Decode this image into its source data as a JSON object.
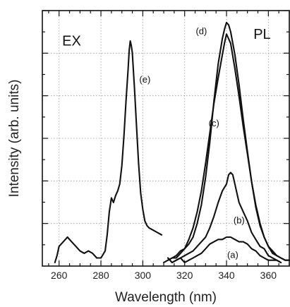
{
  "chart_data": {
    "type": "line",
    "xlabel": "Wavelength (nm)",
    "ylabel": "Intensity (arb. units)",
    "xlim": [
      252,
      370
    ],
    "ylim": [
      0,
      1.0
    ],
    "x_ticks": [
      260,
      280,
      300,
      320,
      340,
      360
    ],
    "x_minor_step": 5,
    "y_tick_count": 6,
    "y_tick_labels": false,
    "grid": true,
    "region_labels": [
      {
        "text": "EX",
        "x": 266,
        "y": 0.94
      },
      {
        "text": "PL",
        "x": 357,
        "y": 0.97
      }
    ],
    "series": [
      {
        "label": "(e)",
        "label_at": {
          "x": 301,
          "y": 0.78
        },
        "points": [
          [
            258,
            0.0
          ],
          [
            259,
            0.03
          ],
          [
            260,
            0.07
          ],
          [
            262,
            0.09
          ],
          [
            264,
            0.11
          ],
          [
            266,
            0.09
          ],
          [
            268,
            0.07
          ],
          [
            270,
            0.05
          ],
          [
            272,
            0.04
          ],
          [
            274,
            0.05
          ],
          [
            276,
            0.04
          ],
          [
            278,
            0.02
          ],
          [
            280,
            0.02
          ],
          [
            282,
            0.05
          ],
          [
            283,
            0.12
          ],
          [
            284,
            0.22
          ],
          [
            285,
            0.28
          ],
          [
            286,
            0.26
          ],
          [
            287,
            0.29
          ],
          [
            288,
            0.31
          ],
          [
            289,
            0.34
          ],
          [
            290,
            0.42
          ],
          [
            291,
            0.55
          ],
          [
            292,
            0.7
          ],
          [
            293,
            0.84
          ],
          [
            293.5,
            0.92
          ],
          [
            294,
            0.96
          ],
          [
            294.5,
            0.94
          ],
          [
            295,
            0.91
          ],
          [
            296,
            0.76
          ],
          [
            297,
            0.59
          ],
          [
            298,
            0.43
          ],
          [
            299,
            0.3
          ],
          [
            300,
            0.23
          ],
          [
            301,
            0.18
          ],
          [
            302,
            0.16
          ],
          [
            303,
            0.15
          ],
          [
            305,
            0.14
          ],
          [
            307,
            0.13
          ],
          [
            309,
            0.12
          ]
        ]
      },
      {
        "label": "(a)",
        "label_at": {
          "x": 343,
          "y": 0.02
        },
        "points": [
          [
            312,
            0.02
          ],
          [
            314,
            0.0
          ],
          [
            316,
            0.01
          ],
          [
            318,
            0.02
          ],
          [
            320,
            0.0
          ],
          [
            322,
            0.01
          ],
          [
            324,
            0.02
          ],
          [
            326,
            0.03
          ],
          [
            328,
            0.04
          ],
          [
            330,
            0.06
          ],
          [
            332,
            0.08
          ],
          [
            334,
            0.09
          ],
          [
            336,
            0.1
          ],
          [
            338,
            0.1
          ],
          [
            340,
            0.11
          ],
          [
            342,
            0.11
          ],
          [
            344,
            0.1
          ],
          [
            346,
            0.09
          ],
          [
            348,
            0.09
          ],
          [
            350,
            0.08
          ],
          [
            352,
            0.06
          ],
          [
            354,
            0.05
          ],
          [
            356,
            0.03
          ],
          [
            358,
            0.02
          ],
          [
            360,
            0.01
          ],
          [
            362,
            0.01
          ],
          [
            364,
            0.01
          ],
          [
            366,
            0.0
          ]
        ]
      },
      {
        "label": "(b)",
        "label_at": {
          "x": 346,
          "y": 0.17
        },
        "points": [
          [
            314,
            0.0
          ],
          [
            316,
            0.01
          ],
          [
            318,
            0.02
          ],
          [
            320,
            0.03
          ],
          [
            322,
            0.04
          ],
          [
            324,
            0.05
          ],
          [
            326,
            0.07
          ],
          [
            328,
            0.09
          ],
          [
            330,
            0.11
          ],
          [
            332,
            0.15
          ],
          [
            334,
            0.2
          ],
          [
            336,
            0.26
          ],
          [
            338,
            0.31
          ],
          [
            340,
            0.34
          ],
          [
            341,
            0.38
          ],
          [
            342,
            0.39
          ],
          [
            343,
            0.38
          ],
          [
            344,
            0.34
          ],
          [
            345,
            0.3
          ],
          [
            346,
            0.26
          ],
          [
            348,
            0.22
          ],
          [
            350,
            0.18
          ],
          [
            352,
            0.13
          ],
          [
            354,
            0.1
          ],
          [
            356,
            0.07
          ],
          [
            358,
            0.06
          ],
          [
            360,
            0.03
          ],
          [
            362,
            0.02
          ],
          [
            364,
            0.01
          ],
          [
            366,
            0.0
          ]
        ]
      },
      {
        "label": "(c)",
        "label_at": {
          "x": 334,
          "y": 0.59
        },
        "points": [
          [
            312,
            0.01
          ],
          [
            314,
            0.02
          ],
          [
            316,
            0.03
          ],
          [
            318,
            0.05
          ],
          [
            320,
            0.06
          ],
          [
            322,
            0.1
          ],
          [
            324,
            0.15
          ],
          [
            326,
            0.22
          ],
          [
            328,
            0.31
          ],
          [
            330,
            0.43
          ],
          [
            332,
            0.56
          ],
          [
            334,
            0.69
          ],
          [
            336,
            0.8
          ],
          [
            338,
            0.9
          ],
          [
            339,
            0.95
          ],
          [
            340,
            0.99
          ],
          [
            341,
            0.97
          ],
          [
            342,
            0.95
          ],
          [
            344,
            0.84
          ],
          [
            346,
            0.72
          ],
          [
            348,
            0.59
          ],
          [
            350,
            0.47
          ],
          [
            352,
            0.35
          ],
          [
            354,
            0.25
          ],
          [
            356,
            0.17
          ],
          [
            358,
            0.11
          ],
          [
            360,
            0.07
          ],
          [
            362,
            0.04
          ],
          [
            364,
            0.03
          ],
          [
            366,
            0.02
          ],
          [
            368,
            0.01
          ],
          [
            370,
            0.01
          ]
        ]
      },
      {
        "label": "(d)",
        "label_at": {
          "x": 328,
          "y": 0.99
        },
        "points": [
          [
            310,
            0.0
          ],
          [
            312,
            0.01
          ],
          [
            314,
            0.02
          ],
          [
            316,
            0.02
          ],
          [
            318,
            0.04
          ],
          [
            320,
            0.06
          ],
          [
            322,
            0.08
          ],
          [
            324,
            0.11
          ],
          [
            326,
            0.17
          ],
          [
            328,
            0.25
          ],
          [
            330,
            0.37
          ],
          [
            332,
            0.52
          ],
          [
            334,
            0.7
          ],
          [
            336,
            0.86
          ],
          [
            338,
            0.97
          ],
          [
            339,
            1.01
          ],
          [
            340,
            1.04
          ],
          [
            341,
            1.03
          ],
          [
            342,
            1.0
          ],
          [
            344,
            0.9
          ],
          [
            346,
            0.77
          ],
          [
            348,
            0.62
          ],
          [
            350,
            0.48
          ],
          [
            352,
            0.35
          ],
          [
            354,
            0.24
          ],
          [
            356,
            0.16
          ],
          [
            358,
            0.11
          ],
          [
            360,
            0.07
          ],
          [
            362,
            0.05
          ],
          [
            364,
            0.03
          ],
          [
            366,
            0.02
          ],
          [
            368,
            0.01
          ],
          [
            370,
            0.01
          ]
        ]
      }
    ]
  }
}
